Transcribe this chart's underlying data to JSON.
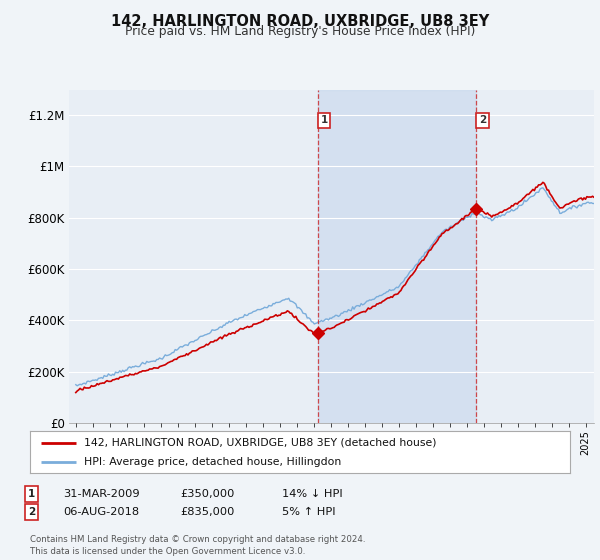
{
  "title": "142, HARLINGTON ROAD, UXBRIDGE, UB8 3EY",
  "subtitle": "Price paid vs. HM Land Registry's House Price Index (HPI)",
  "bg_color": "#f0f4f8",
  "plot_bg_color": "#e8eef5",
  "shade_color": "#c8d8ee",
  "sale1": {
    "date": "31-MAR-2009",
    "price": 350000,
    "label": "1",
    "pct": "14%",
    "dir": "↓"
  },
  "sale2": {
    "date": "06-AUG-2018",
    "price": 835000,
    "label": "2",
    "pct": "5%",
    "dir": "↑"
  },
  "legend_line1": "142, HARLINGTON ROAD, UXBRIDGE, UB8 3EY (detached house)",
  "legend_line2": "HPI: Average price, detached house, Hillingdon",
  "footer": "Contains HM Land Registry data © Crown copyright and database right 2024.\nThis data is licensed under the Open Government Licence v3.0.",
  "line_color_property": "#cc0000",
  "line_color_hpi": "#7aaddb",
  "ylim": [
    0,
    1300000
  ],
  "yticks": [
    0,
    200000,
    400000,
    600000,
    800000,
    1000000,
    1200000
  ],
  "ytick_labels": [
    "£0",
    "£200K",
    "£400K",
    "£600K",
    "£800K",
    "£1M",
    "£1.2M"
  ],
  "sale1_year": 2009.25,
  "sale2_year": 2018.58
}
